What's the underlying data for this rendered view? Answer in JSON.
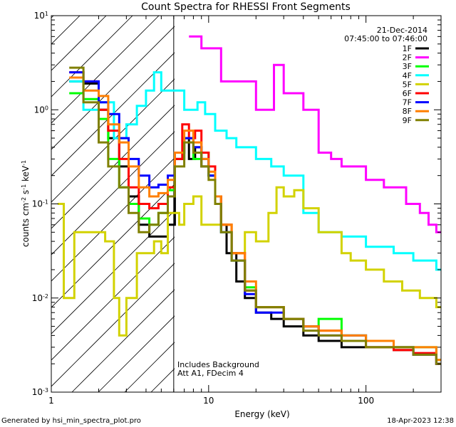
{
  "chart_data": {
    "type": "line",
    "title": "Count Spectra for RHESSI Front Segments",
    "xlabel": "Energy (keV)",
    "ylabel_parts": {
      "base": "counts cm",
      "exp1": "-2",
      "mid": " s",
      "exp2": "-1",
      "end": " keV",
      "exp3": "-1"
    },
    "xscale": "log",
    "yscale": "log",
    "xlim": [
      1.0,
      300.0
    ],
    "ylim": [
      0.001,
      10.0
    ],
    "x_ticks": [
      {
        "value": 1,
        "label": "1"
      },
      {
        "value": 10,
        "label": "10"
      },
      {
        "value": 100,
        "label": "100"
      }
    ],
    "y_ticks": [
      {
        "value": 10,
        "base": "10",
        "exp": "1"
      },
      {
        "value": 1,
        "base": "10",
        "exp": "0"
      },
      {
        "value": 0.1,
        "base": "10",
        "exp": "-1"
      },
      {
        "value": 0.01,
        "base": "10",
        "exp": "-2"
      },
      {
        "value": 0.001,
        "base": "10",
        "exp": "-3"
      }
    ],
    "hatched_region": {
      "x_min": 1.0,
      "x_max": 6.0
    },
    "legend_header": [
      "21-Dec-2014",
      "07:45:00 to 07:46:00"
    ],
    "legend_placement": "top-right",
    "annotations": [
      "Includes Background",
      "Att A1, FDecim  4"
    ],
    "footer_left": "Generated by hsi_min_spectra_plot.pro",
    "footer_right": "18-Apr-2023 12:38",
    "series": [
      {
        "name": "1F",
        "color": "#000000",
        "points": [
          [
            1.3,
            2.0
          ],
          [
            1.6,
            1.9
          ],
          [
            2.0,
            1.0
          ],
          [
            2.3,
            0.5
          ],
          [
            2.7,
            0.25
          ],
          [
            3.1,
            0.12
          ],
          [
            3.6,
            0.06
          ],
          [
            4.2,
            0.045
          ],
          [
            4.8,
            0.045
          ],
          [
            5.5,
            0.06
          ],
          [
            6.1,
            0.3
          ],
          [
            7.0,
            0.5
          ],
          [
            7.5,
            0.3
          ],
          [
            8.2,
            0.4
          ],
          [
            9.0,
            0.25
          ],
          [
            10,
            0.2
          ],
          [
            11,
            0.12
          ],
          [
            12,
            0.06
          ],
          [
            13,
            0.03
          ],
          [
            15,
            0.015
          ],
          [
            17,
            0.01
          ],
          [
            20,
            0.007
          ],
          [
            25,
            0.006
          ],
          [
            30,
            0.005
          ],
          [
            40,
            0.004
          ],
          [
            50,
            0.0035
          ],
          [
            70,
            0.003
          ],
          [
            100,
            0.003
          ],
          [
            150,
            0.0028
          ],
          [
            200,
            0.0025
          ],
          [
            280,
            0.002
          ]
        ]
      },
      {
        "name": "2F",
        "color": "#ff00ff",
        "points": [
          [
            7.5,
            6.0
          ],
          [
            9.0,
            4.5
          ],
          [
            12,
            2.0
          ],
          [
            20,
            1.0
          ],
          [
            26,
            3.0
          ],
          [
            30,
            1.5
          ],
          [
            35,
            1.5
          ],
          [
            40,
            1.0
          ],
          [
            50,
            0.35
          ],
          [
            60,
            0.3
          ],
          [
            70,
            0.25
          ],
          [
            100,
            0.18
          ],
          [
            130,
            0.15
          ],
          [
            180,
            0.1
          ],
          [
            220,
            0.08
          ],
          [
            250,
            0.06
          ],
          [
            280,
            0.05
          ]
        ]
      },
      {
        "name": "3F",
        "color": "#00ff00",
        "points": [
          [
            1.3,
            1.5
          ],
          [
            1.6,
            1.3
          ],
          [
            2.0,
            0.8
          ],
          [
            2.3,
            0.3
          ],
          [
            2.7,
            0.15
          ],
          [
            3.1,
            0.1
          ],
          [
            3.6,
            0.07
          ],
          [
            4.2,
            0.06
          ],
          [
            4.8,
            0.08
          ],
          [
            5.5,
            0.14
          ],
          [
            6.1,
            0.35
          ],
          [
            7.0,
            0.5
          ],
          [
            8.0,
            0.3
          ],
          [
            9.0,
            0.35
          ],
          [
            10,
            0.2
          ],
          [
            11,
            0.1
          ],
          [
            12,
            0.05
          ],
          [
            14,
            0.025
          ],
          [
            17,
            0.013
          ],
          [
            20,
            0.008
          ],
          [
            30,
            0.006
          ],
          [
            40,
            0.005
          ],
          [
            50,
            0.006
          ],
          [
            70,
            0.004
          ],
          [
            100,
            0.0035
          ],
          [
            150,
            0.003
          ],
          [
            200,
            0.003
          ],
          [
            280,
            0.0022
          ]
        ]
      },
      {
        "name": "4F",
        "color": "#00ffff",
        "points": [
          [
            1.3,
            2.0
          ],
          [
            1.6,
            1.0
          ],
          [
            2.0,
            1.2
          ],
          [
            2.5,
            0.5
          ],
          [
            3.0,
            0.7
          ],
          [
            3.5,
            1.1
          ],
          [
            4.0,
            1.6
          ],
          [
            4.5,
            2.5
          ],
          [
            5.0,
            1.6
          ],
          [
            7.0,
            1.0
          ],
          [
            8.5,
            1.2
          ],
          [
            9.5,
            0.9
          ],
          [
            11,
            0.6
          ],
          [
            13,
            0.5
          ],
          [
            15,
            0.4
          ],
          [
            20,
            0.3
          ],
          [
            25,
            0.25
          ],
          [
            30,
            0.2
          ],
          [
            40,
            0.08
          ],
          [
            50,
            0.05
          ],
          [
            70,
            0.045
          ],
          [
            100,
            0.035
          ],
          [
            150,
            0.03
          ],
          [
            200,
            0.025
          ],
          [
            280,
            0.02
          ]
        ]
      },
      {
        "name": "5F",
        "color": "#d2d200",
        "points": [
          [
            1.1,
            0.1
          ],
          [
            1.2,
            0.01
          ],
          [
            1.4,
            0.05
          ],
          [
            1.8,
            0.05
          ],
          [
            2.2,
            0.04
          ],
          [
            2.5,
            0.01
          ],
          [
            2.7,
            0.004
          ],
          [
            3.0,
            0.01
          ],
          [
            3.5,
            0.03
          ],
          [
            4.0,
            0.03
          ],
          [
            4.5,
            0.04
          ],
          [
            5.0,
            0.03
          ],
          [
            5.5,
            0.08
          ],
          [
            6.5,
            0.06
          ],
          [
            7.0,
            0.1
          ],
          [
            8.0,
            0.12
          ],
          [
            9.0,
            0.06
          ],
          [
            11,
            0.06
          ],
          [
            14,
            0.03
          ],
          [
            17,
            0.05
          ],
          [
            20,
            0.04
          ],
          [
            24,
            0.08
          ],
          [
            27,
            0.15
          ],
          [
            30,
            0.12
          ],
          [
            35,
            0.14
          ],
          [
            40,
            0.09
          ],
          [
            50,
            0.05
          ],
          [
            60,
            0.05
          ],
          [
            70,
            0.03
          ],
          [
            80,
            0.025
          ],
          [
            100,
            0.02
          ],
          [
            130,
            0.015
          ],
          [
            170,
            0.012
          ],
          [
            220,
            0.01
          ],
          [
            280,
            0.008
          ]
        ]
      },
      {
        "name": "6F",
        "color": "#ff0000",
        "points": [
          [
            1.3,
            2.5
          ],
          [
            1.6,
            2.0
          ],
          [
            2.0,
            1.0
          ],
          [
            2.3,
            0.6
          ],
          [
            2.7,
            0.3
          ],
          [
            3.1,
            0.15
          ],
          [
            3.6,
            0.1
          ],
          [
            4.2,
            0.09
          ],
          [
            4.8,
            0.1
          ],
          [
            5.5,
            0.15
          ],
          [
            6.1,
            0.3
          ],
          [
            6.8,
            0.7
          ],
          [
            7.5,
            0.5
          ],
          [
            8.2,
            0.6
          ],
          [
            9.0,
            0.35
          ],
          [
            10,
            0.25
          ],
          [
            11,
            0.12
          ],
          [
            12,
            0.06
          ],
          [
            14,
            0.03
          ],
          [
            17,
            0.012
          ],
          [
            20,
            0.008
          ],
          [
            30,
            0.006
          ],
          [
            40,
            0.005
          ],
          [
            50,
            0.0045
          ],
          [
            70,
            0.0035
          ],
          [
            100,
            0.003
          ],
          [
            150,
            0.0028
          ],
          [
            200,
            0.0026
          ],
          [
            280,
            0.002
          ]
        ]
      },
      {
        "name": "7F",
        "color": "#0000ff",
        "points": [
          [
            1.3,
            2.5
          ],
          [
            1.6,
            2.0
          ],
          [
            2.0,
            1.2
          ],
          [
            2.3,
            0.9
          ],
          [
            2.7,
            0.5
          ],
          [
            3.1,
            0.3
          ],
          [
            3.6,
            0.2
          ],
          [
            4.2,
            0.15
          ],
          [
            4.8,
            0.16
          ],
          [
            5.5,
            0.2
          ],
          [
            6.1,
            0.35
          ],
          [
            7.0,
            0.5
          ],
          [
            8.0,
            0.4
          ],
          [
            9.0,
            0.3
          ],
          [
            10,
            0.2
          ],
          [
            11,
            0.1
          ],
          [
            12,
            0.05
          ],
          [
            14,
            0.025
          ],
          [
            17,
            0.011
          ],
          [
            20,
            0.007
          ],
          [
            30,
            0.006
          ],
          [
            40,
            0.005
          ],
          [
            50,
            0.004
          ],
          [
            70,
            0.004
          ],
          [
            100,
            0.0035
          ],
          [
            150,
            0.003
          ],
          [
            200,
            0.0025
          ],
          [
            280,
            0.002
          ]
        ]
      },
      {
        "name": "8F",
        "color": "#ff7f00",
        "points": [
          [
            1.3,
            2.2
          ],
          [
            1.6,
            1.6
          ],
          [
            2.0,
            1.4
          ],
          [
            2.3,
            0.7
          ],
          [
            2.7,
            0.45
          ],
          [
            3.1,
            0.25
          ],
          [
            3.6,
            0.15
          ],
          [
            4.2,
            0.12
          ],
          [
            4.8,
            0.13
          ],
          [
            5.5,
            0.18
          ],
          [
            6.1,
            0.35
          ],
          [
            7.0,
            0.6
          ],
          [
            8.0,
            0.45
          ],
          [
            9.0,
            0.3
          ],
          [
            10,
            0.22
          ],
          [
            11,
            0.12
          ],
          [
            12,
            0.06
          ],
          [
            14,
            0.03
          ],
          [
            17,
            0.015
          ],
          [
            20,
            0.008
          ],
          [
            30,
            0.006
          ],
          [
            40,
            0.005
          ],
          [
            50,
            0.0045
          ],
          [
            70,
            0.004
          ],
          [
            100,
            0.0035
          ],
          [
            150,
            0.003
          ],
          [
            200,
            0.003
          ],
          [
            280,
            0.0022
          ]
        ]
      },
      {
        "name": "9F",
        "color": "#808000",
        "points": [
          [
            1.3,
            2.8
          ],
          [
            1.6,
            1.2
          ],
          [
            2.0,
            0.45
          ],
          [
            2.3,
            0.25
          ],
          [
            2.7,
            0.15
          ],
          [
            3.1,
            0.08
          ],
          [
            3.6,
            0.05
          ],
          [
            4.2,
            0.06
          ],
          [
            4.8,
            0.08
          ],
          [
            5.5,
            0.12
          ],
          [
            6.1,
            0.25
          ],
          [
            7.0,
            0.45
          ],
          [
            8.0,
            0.35
          ],
          [
            9.0,
            0.25
          ],
          [
            10,
            0.18
          ],
          [
            11,
            0.1
          ],
          [
            12,
            0.05
          ],
          [
            14,
            0.025
          ],
          [
            17,
            0.012
          ],
          [
            20,
            0.008
          ],
          [
            30,
            0.006
          ],
          [
            40,
            0.0045
          ],
          [
            50,
            0.004
          ],
          [
            70,
            0.0035
          ],
          [
            100,
            0.003
          ],
          [
            150,
            0.003
          ],
          [
            200,
            0.0025
          ],
          [
            280,
            0.002
          ]
        ]
      }
    ]
  }
}
